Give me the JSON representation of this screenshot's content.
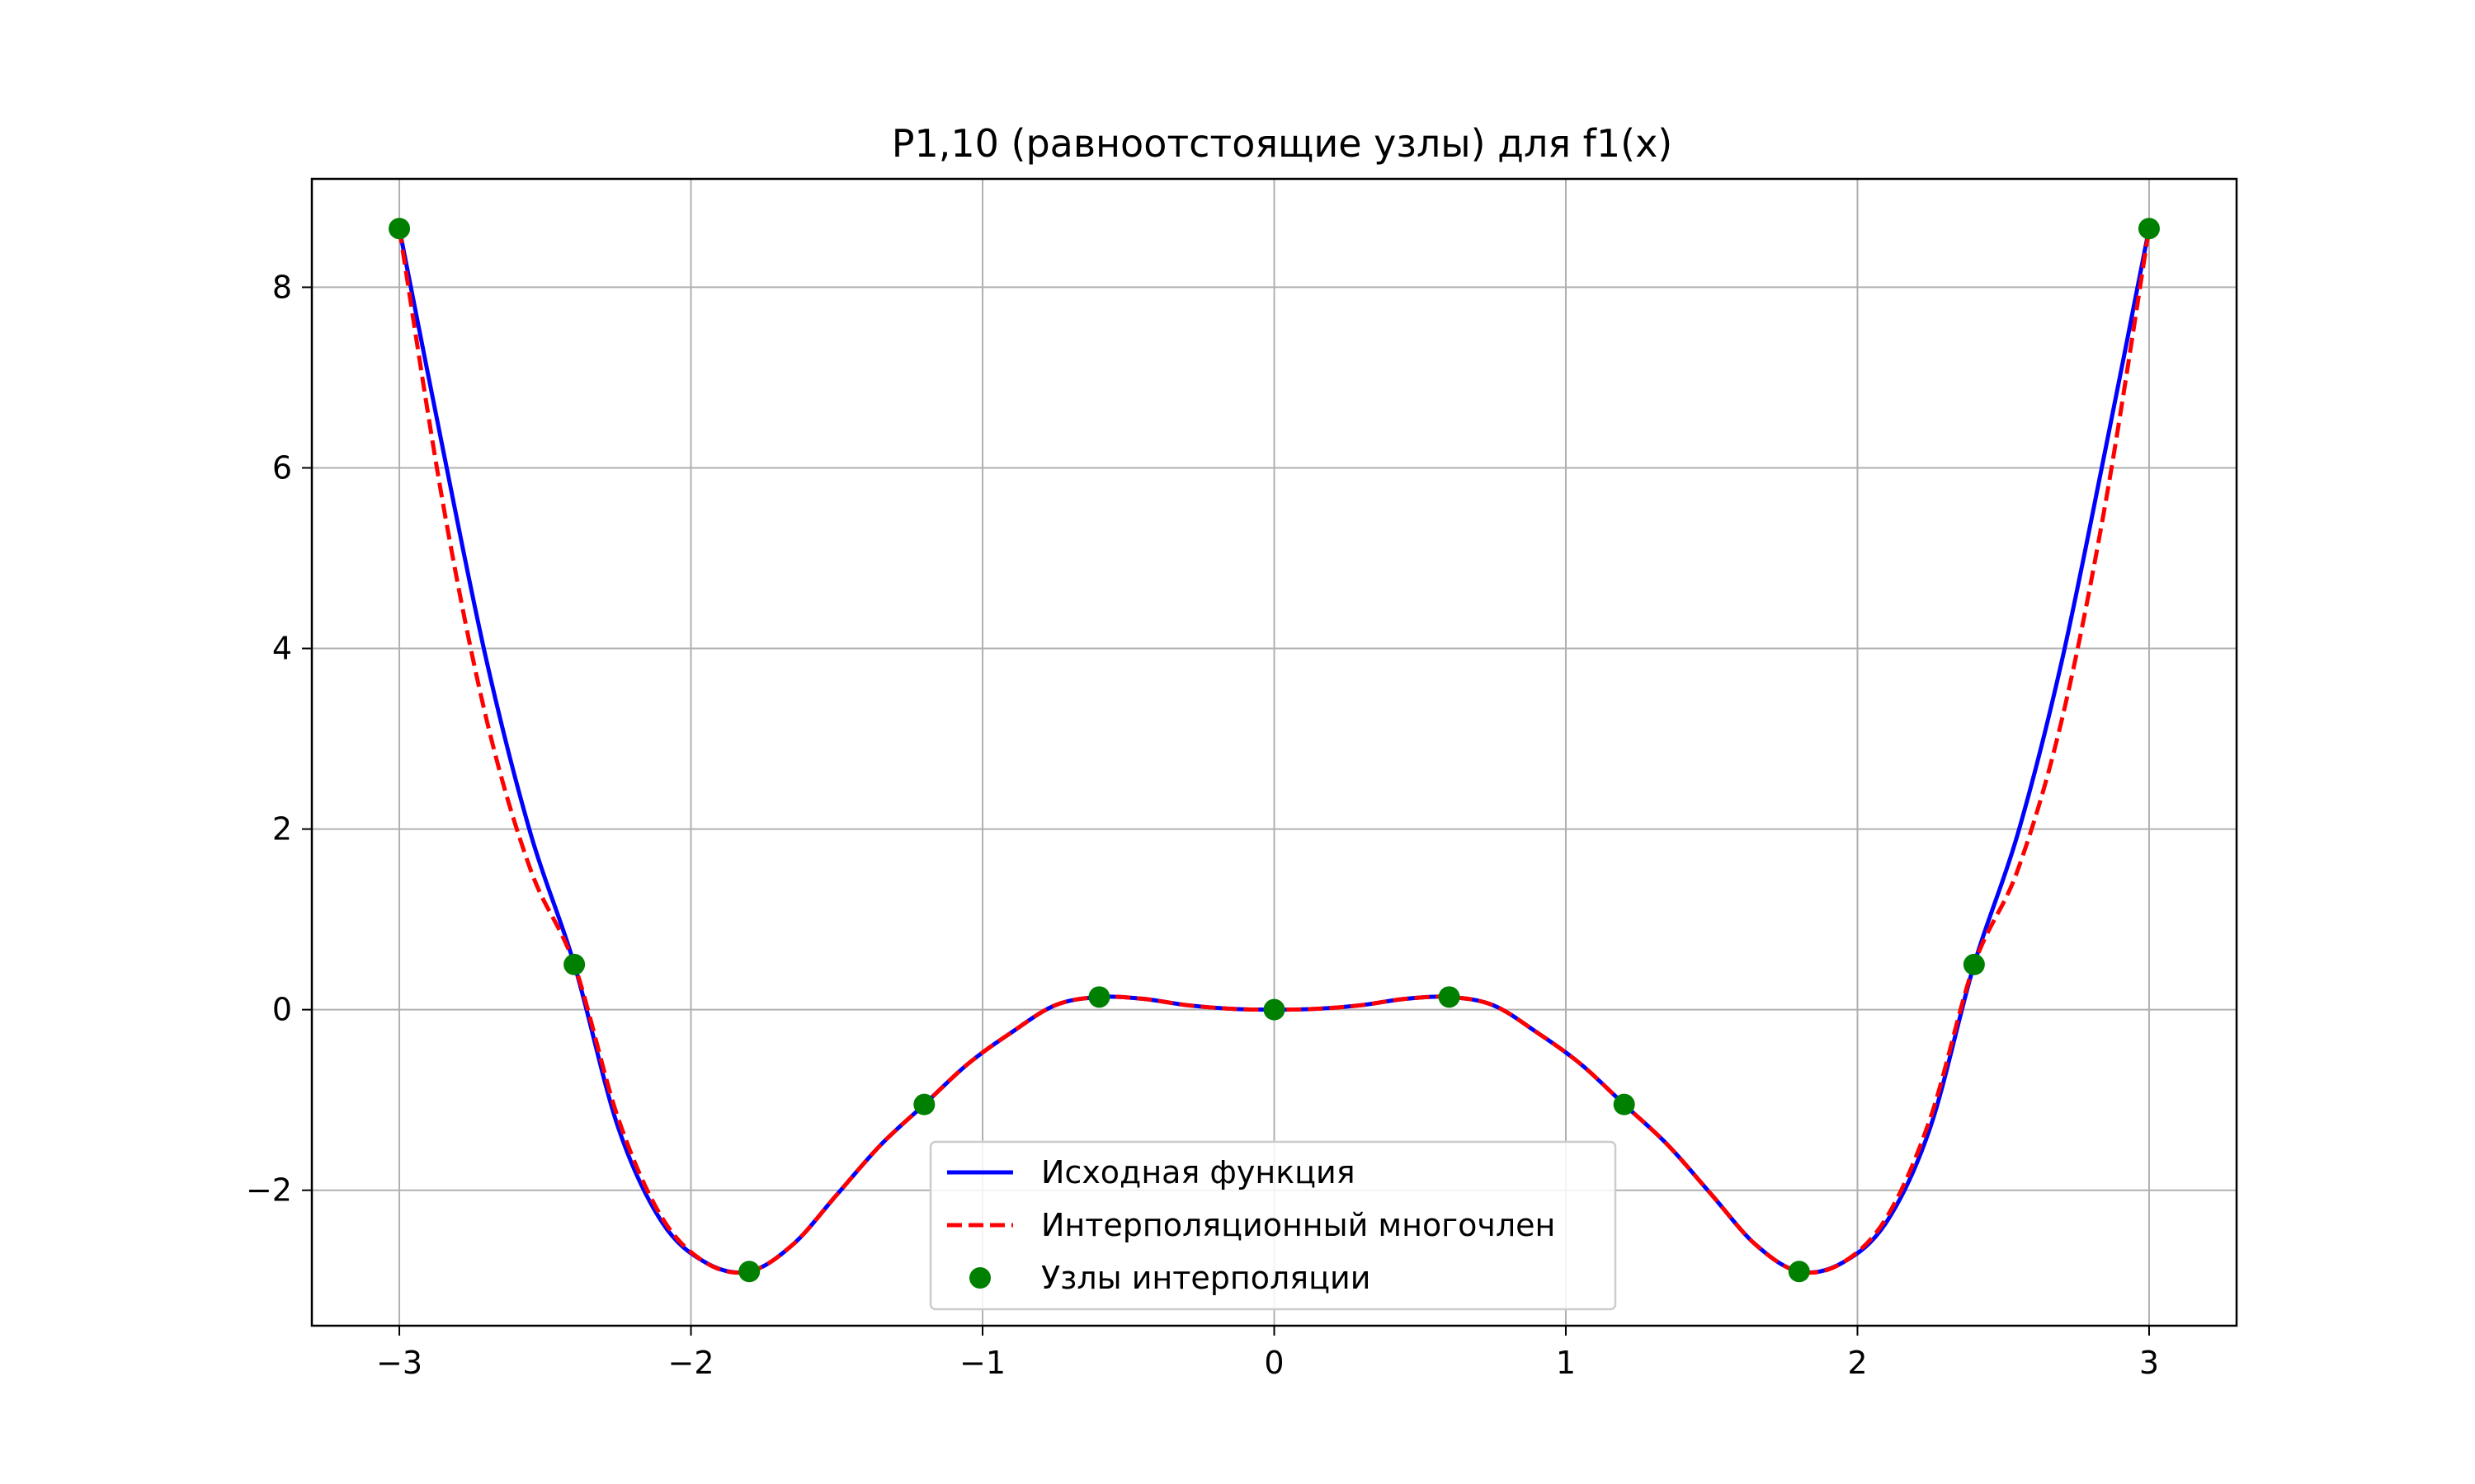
{
  "chart_data": {
    "type": "line",
    "title": "P1,10 (равноотстоящие узлы) для f1(x)",
    "xlabel": "",
    "ylabel": "",
    "xlim": [
      -3.3,
      3.3
    ],
    "ylim": [
      -3.5,
      9.2
    ],
    "grid": true,
    "legend_position": "lower center",
    "x_ticks": [
      -3,
      -2,
      -1,
      0,
      1,
      2,
      3
    ],
    "x_tick_labels": [
      "−3",
      "−2",
      "−1",
      "0",
      "1",
      "2",
      "3"
    ],
    "y_ticks": [
      -2,
      0,
      2,
      4,
      6,
      8
    ],
    "y_tick_labels": [
      "−2",
      "0",
      "2",
      "4",
      "6",
      "8"
    ],
    "legend": [
      {
        "label": "Исходная функция",
        "style": "solid-line",
        "color": "#0000ff"
      },
      {
        "label": "Интерполяционный многочлен",
        "style": "dashed-line",
        "color": "#ff0000"
      },
      {
        "label": "Узлы интерполяции",
        "style": "marker",
        "color": "#008000"
      }
    ],
    "series": [
      {
        "name": "Исходная функция",
        "style": "solid",
        "color": "#0000ff",
        "x": [
          -3,
          -2.85,
          -2.7,
          -2.55,
          -2.4,
          -2.25,
          -2.1,
          -1.95,
          -1.8,
          -1.65,
          -1.5,
          -1.35,
          -1.2,
          -1.05,
          -0.9,
          -0.75,
          -0.6,
          -0.45,
          -0.3,
          -0.15,
          0,
          0.15,
          0.3,
          0.45,
          0.6,
          0.75,
          0.9,
          1.05,
          1.2,
          1.35,
          1.5,
          1.65,
          1.8,
          1.95,
          2.1,
          2.25,
          2.4,
          2.55,
          2.7,
          2.85,
          3
        ],
        "y": [
          8.65,
          6.2,
          3.85,
          1.95,
          0.5,
          -1.3,
          -2.35,
          -2.8,
          -2.9,
          -2.6,
          -2.05,
          -1.5,
          -1.05,
          -0.6,
          -0.25,
          0.05,
          0.14,
          0.12,
          0.05,
          0.01,
          0,
          0.01,
          0.05,
          0.12,
          0.14,
          0.05,
          -0.25,
          -0.6,
          -1.05,
          -1.5,
          -2.05,
          -2.6,
          -2.9,
          -2.8,
          -2.35,
          -1.3,
          0.5,
          1.95,
          3.85,
          6.2,
          8.65
        ]
      },
      {
        "name": "Интерполяционный многочлен",
        "style": "dashed",
        "color": "#ff0000",
        "x": [
          -3,
          -2.85,
          -2.7,
          -2.55,
          -2.4,
          -2.25,
          -2.1,
          -1.95,
          -1.8,
          -1.65,
          -1.5,
          -1.35,
          -1.2,
          -1.05,
          -0.9,
          -0.75,
          -0.6,
          -0.45,
          -0.3,
          -0.15,
          0,
          0.15,
          0.3,
          0.45,
          0.6,
          0.75,
          0.9,
          1.05,
          1.2,
          1.35,
          1.5,
          1.65,
          1.8,
          1.95,
          2.1,
          2.25,
          2.4,
          2.55,
          2.7,
          2.85,
          3
        ],
        "y": [
          8.65,
          5.6,
          3.2,
          1.55,
          0.5,
          -1.2,
          -2.3,
          -2.8,
          -2.9,
          -2.6,
          -2.05,
          -1.5,
          -1.05,
          -0.6,
          -0.25,
          0.05,
          0.14,
          0.12,
          0.05,
          0.01,
          0,
          0.01,
          0.05,
          0.12,
          0.14,
          0.05,
          -0.25,
          -0.6,
          -1.05,
          -1.5,
          -2.05,
          -2.6,
          -2.9,
          -2.8,
          -2.3,
          -1.2,
          0.5,
          1.55,
          3.2,
          5.6,
          8.65
        ]
      },
      {
        "name": "Узлы интерполяции",
        "style": "markers",
        "color": "#008000",
        "x": [
          -3,
          -2.4,
          -1.8,
          -1.2,
          -0.6,
          0,
          0.6,
          1.2,
          1.8,
          2.4,
          3
        ],
        "y": [
          8.65,
          0.5,
          -2.9,
          -1.05,
          0.14,
          0,
          0.14,
          -1.05,
          -2.9,
          0.5,
          8.65
        ]
      }
    ]
  }
}
